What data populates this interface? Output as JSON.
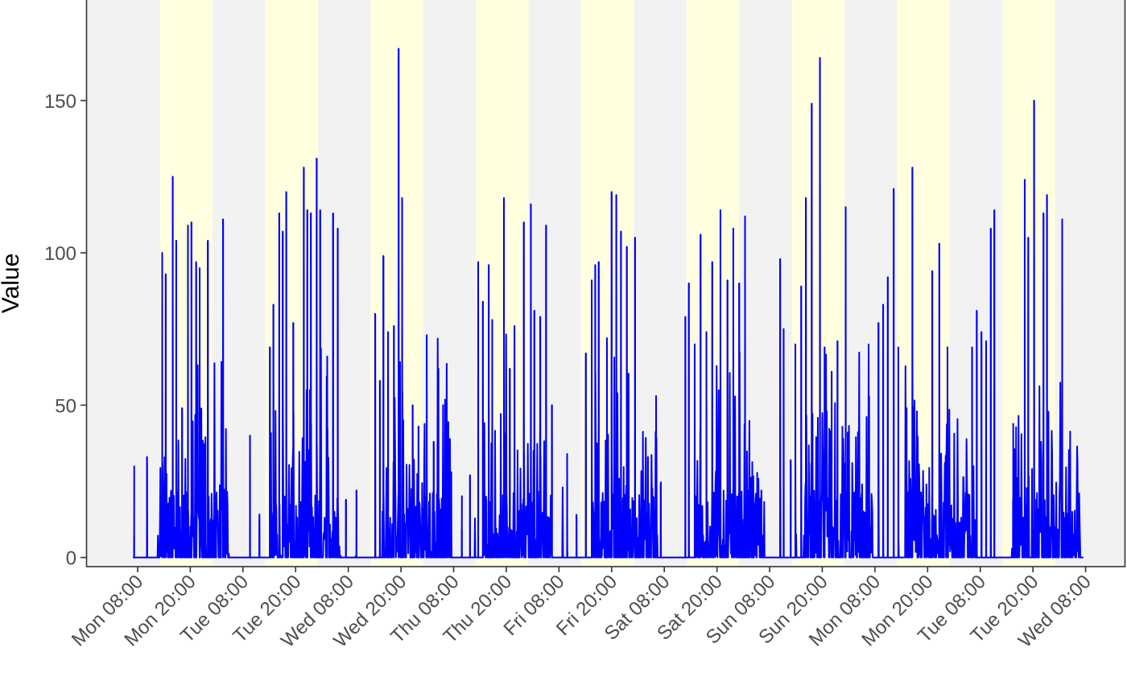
{
  "chart_data": {
    "type": "line",
    "title": "",
    "xlabel": "",
    "ylabel": "Value",
    "ylim": [
      -3,
      183
    ],
    "xlim_hours": [
      -4.4,
      84.4
    ],
    "grid": false,
    "legend": "none",
    "colors": {
      "line": "#0000ff",
      "panel": "#f2f2f2",
      "shade": "#ffffe0",
      "axis": "#333333"
    },
    "y_ticks": [
      {
        "value": 0,
        "label": "0"
      },
      {
        "value": 50,
        "label": "50"
      },
      {
        "value": 100,
        "label": "100"
      },
      {
        "value": 150,
        "label": "150"
      }
    ],
    "x_ticks": [
      {
        "hours": 0,
        "label": "Mon 08:00"
      },
      {
        "hours": 4.5,
        "label": "Mon 20:00"
      },
      {
        "hours": 9,
        "label": "Tue 08:00"
      },
      {
        "hours": 13.5,
        "label": "Tue 20:00"
      },
      {
        "hours": 18,
        "label": "Wed 08:00"
      },
      {
        "hours": 22.5,
        "label": "Wed 20:00"
      },
      {
        "hours": 27,
        "label": "Thu 08:00"
      },
      {
        "hours": 31.5,
        "label": "Thu 20:00"
      },
      {
        "hours": 36,
        "label": "Fri 08:00"
      },
      {
        "hours": 40.5,
        "label": "Fri 20:00"
      },
      {
        "hours": 45,
        "label": "Sat 08:00"
      },
      {
        "hours": 49.5,
        "label": "Sat 20:00"
      },
      {
        "hours": 54,
        "label": "Sun 08:00"
      },
      {
        "hours": 58.5,
        "label": "Sun 20:00"
      },
      {
        "hours": 63,
        "label": "Mon 08:00"
      },
      {
        "hours": 67.5,
        "label": "Mon 20:00"
      },
      {
        "hours": 72,
        "label": "Tue 08:00"
      },
      {
        "hours": 76.5,
        "label": "Tue 20:00"
      },
      {
        "hours": 81,
        "label": "Wed 08:00"
      }
    ],
    "shaded_bands_hours": [
      [
        1.9,
        6.4
      ],
      [
        10.9,
        15.4
      ],
      [
        19.9,
        24.4
      ],
      [
        28.9,
        33.4
      ],
      [
        37.9,
        42.4
      ],
      [
        46.9,
        51.4
      ],
      [
        55.9,
        60.4
      ],
      [
        64.9,
        69.4
      ],
      [
        73.9,
        78.4
      ]
    ],
    "activity_windows_hours": [
      [
        1.9,
        7.8
      ],
      [
        11.3,
        17.4
      ],
      [
        20.9,
        26.7
      ],
      [
        29.5,
        35.4
      ],
      [
        38.8,
        44.4
      ],
      [
        47.6,
        53.6
      ],
      [
        56.9,
        62.8
      ],
      [
        65.6,
        71.6
      ],
      [
        74.6,
        80.6
      ]
    ],
    "series": [
      {
        "values": [
          [
            -0.3,
            7
          ],
          [
            0.8,
            33
          ],
          [
            2.1,
            100
          ],
          [
            2.4,
            93
          ],
          [
            3.0,
            125
          ],
          [
            3.3,
            104
          ],
          [
            3.8,
            49
          ],
          [
            4.3,
            109
          ],
          [
            4.6,
            110
          ],
          [
            5.0,
            97
          ],
          [
            5.3,
            95
          ],
          [
            6.0,
            104
          ],
          [
            7.3,
            111
          ],
          [
            9.6,
            40
          ],
          [
            10.4,
            12
          ],
          [
            11.3,
            69
          ],
          [
            11.6,
            83
          ],
          [
            12.1,
            113
          ],
          [
            12.4,
            107
          ],
          [
            12.7,
            120
          ],
          [
            13.3,
            77
          ],
          [
            14.2,
            128
          ],
          [
            14.5,
            114
          ],
          [
            14.8,
            113
          ],
          [
            15.3,
            131
          ],
          [
            15.6,
            114
          ],
          [
            16.2,
            66
          ],
          [
            16.7,
            113
          ],
          [
            17.1,
            108
          ],
          [
            17.8,
            19
          ],
          [
            18.7,
            22
          ],
          [
            20.3,
            80
          ],
          [
            20.7,
            58
          ],
          [
            21.0,
            99
          ],
          [
            21.4,
            74
          ],
          [
            21.9,
            76
          ],
          [
            22.3,
            167
          ],
          [
            22.6,
            118
          ],
          [
            23.5,
            50
          ],
          [
            24.0,
            43
          ],
          [
            24.7,
            73
          ],
          [
            25.3,
            38
          ],
          [
            25.7,
            62
          ],
          [
            26.1,
            50
          ],
          [
            26.8,
            28
          ],
          [
            27.7,
            9
          ],
          [
            28.4,
            27
          ],
          [
            29.1,
            97
          ],
          [
            29.5,
            84
          ],
          [
            30.0,
            96
          ],
          [
            30.3,
            78
          ],
          [
            31.3,
            118
          ],
          [
            31.8,
            62
          ],
          [
            32.2,
            76
          ],
          [
            33.0,
            110
          ],
          [
            33.6,
            116
          ],
          [
            33.9,
            81
          ],
          [
            34.4,
            79
          ],
          [
            34.9,
            109
          ],
          [
            35.4,
            50
          ],
          [
            36.7,
            34
          ],
          [
            37.5,
            14
          ],
          [
            38.3,
            67
          ],
          [
            38.8,
            91
          ],
          [
            39.1,
            96
          ],
          [
            39.4,
            97
          ],
          [
            40.1,
            72
          ],
          [
            40.5,
            120
          ],
          [
            40.9,
            119
          ],
          [
            41.3,
            107
          ],
          [
            41.8,
            102
          ],
          [
            42.5,
            105
          ],
          [
            43.6,
            33
          ],
          [
            44.3,
            53
          ],
          [
            44.7,
            24
          ],
          [
            46.8,
            79
          ],
          [
            47.1,
            90
          ],
          [
            47.6,
            70
          ],
          [
            48.1,
            106
          ],
          [
            48.6,
            74
          ],
          [
            49.1,
            97
          ],
          [
            49.8,
            114
          ],
          [
            50.4,
            91
          ],
          [
            50.9,
            108
          ],
          [
            51.4,
            90
          ],
          [
            51.9,
            112
          ],
          [
            52.3,
            11
          ],
          [
            52.6,
            7
          ],
          [
            53.3,
            22
          ],
          [
            54.9,
            98
          ],
          [
            55.2,
            75
          ],
          [
            55.8,
            32
          ],
          [
            56.2,
            70
          ],
          [
            56.7,
            89
          ],
          [
            57.1,
            118
          ],
          [
            57.6,
            149
          ],
          [
            58.3,
            164
          ],
          [
            58.7,
            69
          ],
          [
            59.3,
            61
          ],
          [
            59.8,
            71
          ],
          [
            60.5,
            115
          ],
          [
            61.9,
            24
          ],
          [
            62.5,
            53
          ],
          [
            63.3,
            77
          ],
          [
            63.7,
            83
          ],
          [
            64.1,
            92
          ],
          [
            64.6,
            121
          ],
          [
            65.0,
            69
          ],
          [
            65.7,
            49
          ],
          [
            66.2,
            128
          ],
          [
            66.9,
            13
          ],
          [
            67.4,
            24
          ],
          [
            67.9,
            94
          ],
          [
            68.5,
            103
          ],
          [
            69.2,
            69
          ],
          [
            70.1,
            6
          ],
          [
            71.3,
            69
          ],
          [
            71.7,
            81
          ],
          [
            72.1,
            74
          ],
          [
            72.5,
            71
          ],
          [
            72.9,
            108
          ],
          [
            73.2,
            114
          ],
          [
            74.8,
            19
          ],
          [
            75.8,
            124
          ],
          [
            76.1,
            105
          ],
          [
            76.6,
            150
          ],
          [
            77.4,
            113
          ],
          [
            77.7,
            119
          ],
          [
            79.0,
            111
          ]
        ]
      }
    ]
  }
}
